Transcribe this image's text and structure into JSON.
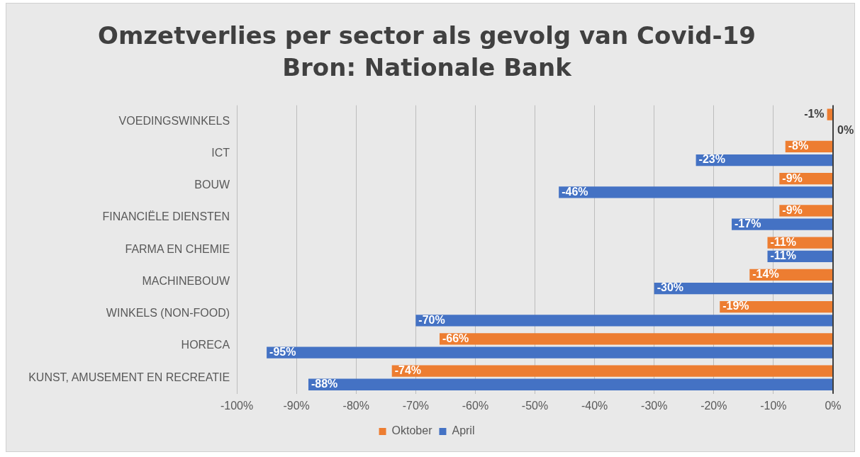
{
  "chart_data": {
    "type": "bar",
    "orientation": "horizontal",
    "title": "Omzetverlies per sector als gevolg van Covid-19",
    "subtitle": "Bron: Nationale Bank",
    "categories": [
      "VOEDINGSWINKELS",
      "ICT",
      "BOUW",
      "FINANCIËLE DIENSTEN",
      "FARMA EN CHEMIE",
      "MACHINEBOUW",
      "WINKELS (NON-FOOD)",
      "HORECA",
      "KUNST, AMUSEMENT EN RECREATIE"
    ],
    "series": [
      {
        "name": "Oktober",
        "color": "#ed7d31",
        "values": [
          -1,
          -8,
          -9,
          -9,
          -11,
          -14,
          -19,
          -66,
          -74
        ],
        "value_labels": [
          "-1%",
          "-8%",
          "-9%",
          "-9%",
          "-11%",
          "-14%",
          "-19%",
          "-66%",
          "-74%"
        ]
      },
      {
        "name": "April",
        "color": "#4472c4",
        "values": [
          0,
          -23,
          -46,
          -17,
          -11,
          -30,
          -70,
          -95,
          -88
        ],
        "value_labels": [
          "0%",
          "-23%",
          "-46%",
          "-17%",
          "-11%",
          "-30%",
          "-70%",
          "-95%",
          "-88%"
        ]
      }
    ],
    "xlim": [
      -100,
      0
    ],
    "xticks": [
      {
        "value": -100,
        "label": "-100%"
      },
      {
        "value": -90,
        "label": "-90%"
      },
      {
        "value": -80,
        "label": "-80%"
      },
      {
        "value": -70,
        "label": "-70%"
      },
      {
        "value": -60,
        "label": "-60%"
      },
      {
        "value": -50,
        "label": "-50%"
      },
      {
        "value": -40,
        "label": "-40%"
      },
      {
        "value": -30,
        "label": "-30%"
      },
      {
        "value": -20,
        "label": "-20%"
      },
      {
        "value": -10,
        "label": "-10%"
      },
      {
        "value": 0,
        "label": "0%"
      }
    ],
    "grid": "x",
    "legend": "bottom"
  }
}
